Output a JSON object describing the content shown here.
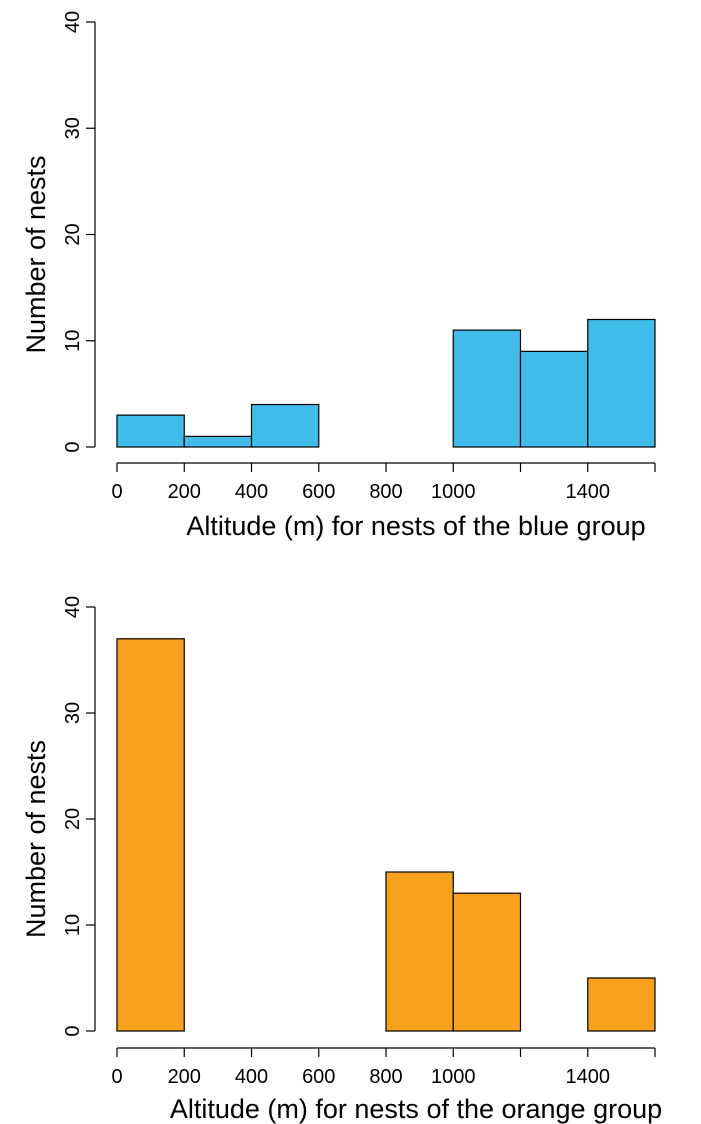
{
  "chart_data": [
    {
      "type": "bar",
      "subtype": "histogram",
      "xlabel": "Altitude (m) for nests of the blue group",
      "ylabel": "Number of nests",
      "bar_color": "#40bbea",
      "bins": [
        {
          "x0": 0,
          "x1": 200,
          "count": 3
        },
        {
          "x0": 200,
          "x1": 400,
          "count": 1
        },
        {
          "x0": 400,
          "x1": 600,
          "count": 4
        },
        {
          "x0": 600,
          "x1": 800,
          "count": 0
        },
        {
          "x0": 800,
          "x1": 1000,
          "count": 0
        },
        {
          "x0": 1000,
          "x1": 1200,
          "count": 11
        },
        {
          "x0": 1200,
          "x1": 1400,
          "count": 9
        },
        {
          "x0": 1400,
          "x1": 1600,
          "count": 12
        }
      ],
      "xlim": [
        0,
        1600
      ],
      "ylim": [
        0,
        40
      ],
      "x_ticks": [
        0,
        200,
        400,
        600,
        800,
        1000,
        1200,
        1400,
        1600
      ],
      "x_tick_labels": [
        "0",
        "200",
        "400",
        "600",
        "800",
        "1000",
        "",
        "1400",
        ""
      ],
      "y_ticks": [
        0,
        10,
        20,
        30,
        40
      ],
      "y_tick_labels": [
        "0",
        "10",
        "20",
        "30",
        "40"
      ]
    },
    {
      "type": "bar",
      "subtype": "histogram",
      "xlabel": "Altitude (m) for nests of the orange group",
      "ylabel": "Number of nests",
      "bar_color": "#f7a11c",
      "bins": [
        {
          "x0": 0,
          "x1": 200,
          "count": 37
        },
        {
          "x0": 200,
          "x1": 400,
          "count": 0
        },
        {
          "x0": 400,
          "x1": 600,
          "count": 0
        },
        {
          "x0": 600,
          "x1": 800,
          "count": 0
        },
        {
          "x0": 800,
          "x1": 1000,
          "count": 15
        },
        {
          "x0": 1000,
          "x1": 1200,
          "count": 13
        },
        {
          "x0": 1200,
          "x1": 1400,
          "count": 0
        },
        {
          "x0": 1400,
          "x1": 1600,
          "count": 5
        }
      ],
      "xlim": [
        0,
        1600
      ],
      "ylim": [
        0,
        40
      ],
      "x_ticks": [
        0,
        200,
        400,
        600,
        800,
        1000,
        1200,
        1400,
        1600
      ],
      "x_tick_labels": [
        "0",
        "200",
        "400",
        "600",
        "800",
        "1000",
        "",
        "1400",
        ""
      ],
      "y_ticks": [
        0,
        10,
        20,
        30,
        40
      ],
      "y_tick_labels": [
        "0",
        "10",
        "20",
        "30",
        "40"
      ]
    }
  ]
}
